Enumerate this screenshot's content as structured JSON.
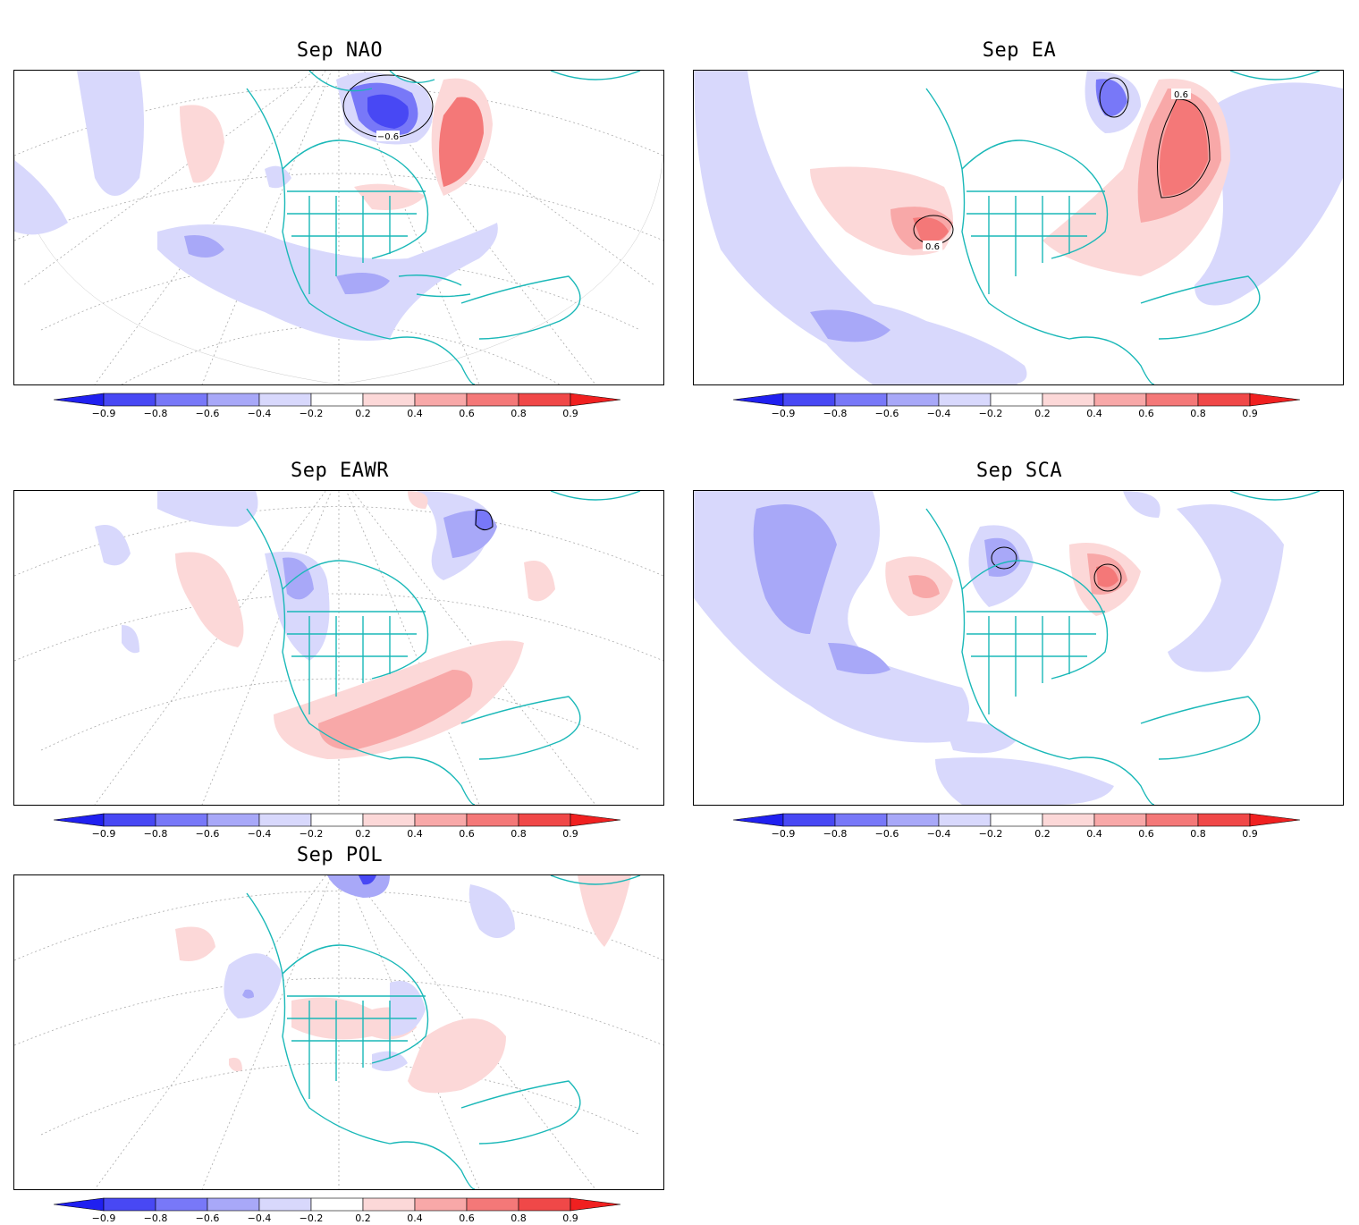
{
  "colorbar": {
    "ticks": [
      "−0.9",
      "−0.8",
      "−0.6",
      "−0.4",
      "−0.2",
      "0.2",
      "0.4",
      "0.6",
      "0.8",
      "0.9"
    ],
    "colors": [
      "#2020f0",
      "#4848f4",
      "#7878f8",
      "#a8a8f8",
      "#d8d8fc",
      "#ffffff",
      "#fcd8d8",
      "#f8a8a8",
      "#f47878",
      "#f04848",
      "#f02020"
    ]
  },
  "palette": {
    "coast": "#1ab8b8",
    "grid": "#aaaaaa",
    "blue1": "#d8d8fc",
    "blue2": "#a8a8f8",
    "blue3": "#7878f8",
    "blue4": "#4848f4",
    "red1": "#fcd8d8",
    "red2": "#f8a8a8",
    "red3": "#f47878"
  },
  "panels": [
    {
      "id": "nao",
      "title": "Sep  NAO",
      "contour_label": "−0.6"
    },
    {
      "id": "ea",
      "title": "Sep  EA",
      "contour_labels": [
        "0.6",
        "0.6"
      ]
    },
    {
      "id": "eawr",
      "title": "Sep  EAWR"
    },
    {
      "id": "sca",
      "title": "Sep  SCA"
    },
    {
      "id": "pol",
      "title": "Sep  POL"
    }
  ]
}
